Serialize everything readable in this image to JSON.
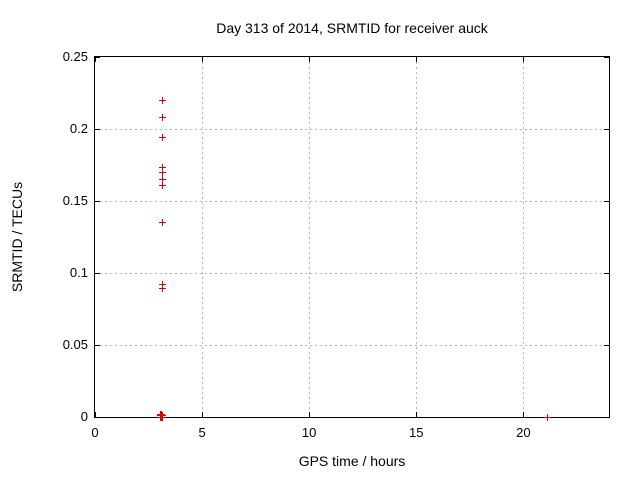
{
  "chart_data": {
    "type": "scatter",
    "title": "Day 313 of 2014, SRMTID for receiver auck",
    "xlabel": "GPS time / hours",
    "ylabel": "SRMTID / TECUs",
    "xlim": [
      0,
      24
    ],
    "ylim": [
      0,
      0.25
    ],
    "xticks": [
      0,
      5,
      10,
      15,
      20
    ],
    "xtick_labels": [
      "0",
      "5",
      "10",
      "15",
      "20"
    ],
    "yticks": [
      0,
      0.05,
      0.1,
      0.15,
      0.2,
      0.25
    ],
    "ytick_labels": [
      "0",
      "0.05",
      "0.1",
      "0.15",
      "0.2",
      "0.25"
    ],
    "grid": true,
    "legend": "none",
    "marker": "plus",
    "marker_color": "#e00000",
    "series_name": "SRMTID",
    "points": [
      [
        3.17,
        0.22
      ],
      [
        3.17,
        0.208
      ],
      [
        3.15,
        0.194
      ],
      [
        3.17,
        0.173
      ],
      [
        3.17,
        0.17
      ],
      [
        3.17,
        0.165
      ],
      [
        3.17,
        0.161
      ],
      [
        3.15,
        0.135
      ],
      [
        3.15,
        0.092
      ],
      [
        3.15,
        0.089
      ],
      [
        3.05,
        0.002
      ],
      [
        3.05,
        0
      ],
      [
        3.08,
        0.001
      ],
      [
        3.08,
        0
      ],
      [
        3.11,
        0.002
      ],
      [
        3.11,
        0
      ],
      [
        3.14,
        0.001
      ],
      [
        3.14,
        0
      ],
      [
        21.15,
        0
      ]
    ]
  }
}
